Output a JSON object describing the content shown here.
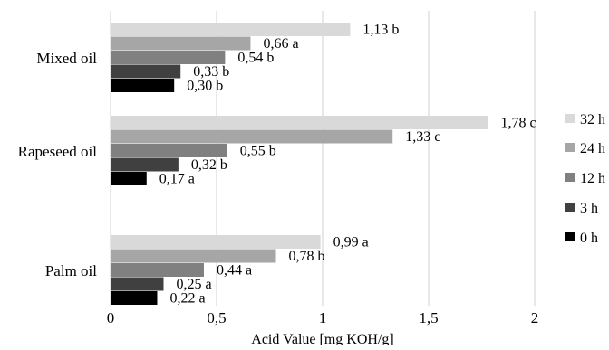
{
  "chart_data": {
    "type": "bar",
    "orientation": "horizontal",
    "xlabel": "Acid Value [mg KOH/g]",
    "ylabel": "",
    "title": "",
    "xlim": [
      0,
      2
    ],
    "x_ticks": [
      0,
      0.5,
      1,
      1.5,
      2
    ],
    "x_tick_labels": [
      "0",
      "0,5",
      "1",
      "1,5",
      "2"
    ],
    "grid": "vertical",
    "legend_position": "right",
    "categories": [
      "Mixed oil",
      "Rapeseed oil",
      "Palm oil"
    ],
    "series": [
      {
        "name": "32 h",
        "color": "#d9d9d9",
        "values": [
          1.13,
          1.78,
          0.99
        ],
        "labels": [
          "1,13 b",
          "1,78 c",
          "0,99 a"
        ]
      },
      {
        "name": "24 h",
        "color": "#a6a6a6",
        "values": [
          0.66,
          1.33,
          0.78
        ],
        "labels": [
          "0,66 a",
          "1,33 c",
          "0,78 b"
        ]
      },
      {
        "name": "12 h",
        "color": "#808080",
        "values": [
          0.54,
          0.55,
          0.44
        ],
        "labels": [
          "0,54 b",
          "0,55 b",
          "0,44 a"
        ]
      },
      {
        "name": "3 h",
        "color": "#404040",
        "values": [
          0.33,
          0.32,
          0.25
        ],
        "labels": [
          "0,33 b",
          "0,32 b",
          "0,25 a"
        ]
      },
      {
        "name": "0 h",
        "color": "#000000",
        "values": [
          0.3,
          0.17,
          0.22
        ],
        "labels": [
          "0,30 b",
          "0,17 a",
          "0,22 a"
        ]
      }
    ]
  }
}
